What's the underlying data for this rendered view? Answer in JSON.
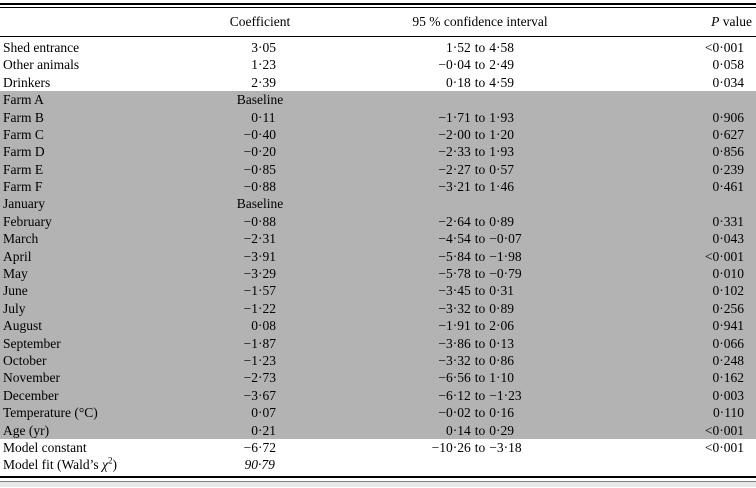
{
  "table": {
    "header": {
      "label": "",
      "coefficient": "Coefficient",
      "confidence_interval": "95 % confidence interval",
      "p_value_italic": "P",
      "p_value_rest": " value"
    },
    "rows": [
      {
        "label": "Shed entrance",
        "coef": "3·05",
        "ci": "1·52 to 4·58",
        "p": "<0·001",
        "shaded": false
      },
      {
        "label": "Other animals",
        "coef": "1·23",
        "ci": "−0·04 to 2·49",
        "p": "0·058",
        "shaded": false
      },
      {
        "label": "Drinkers",
        "coef": "2·39",
        "ci": "0·18 to 4·59",
        "p": "0·034",
        "shaded": false
      },
      {
        "label": "Farm A",
        "coef": "Baseline",
        "ci": "",
        "p": "",
        "shaded": true
      },
      {
        "label": "Farm B",
        "coef": "0·11",
        "ci": "−1·71 to 1·93",
        "p": "0·906",
        "shaded": true
      },
      {
        "label": "Farm C",
        "coef": "−0·40",
        "ci": "−2·00 to 1·20",
        "p": "0·627",
        "shaded": true
      },
      {
        "label": "Farm D",
        "coef": "−0·20",
        "ci": "−2·33 to 1·93",
        "p": "0·856",
        "shaded": true
      },
      {
        "label": "Farm E",
        "coef": "−0·85",
        "ci": "−2·27 to 0·57",
        "p": "0·239",
        "shaded": true
      },
      {
        "label": "Farm F",
        "coef": "−0·88",
        "ci": "−3·21 to 1·46",
        "p": "0·461",
        "shaded": true
      },
      {
        "label": "January",
        "coef": "Baseline",
        "ci": "",
        "p": "",
        "shaded": true
      },
      {
        "label": "February",
        "coef": "−0·88",
        "ci": "−2·64 to 0·89",
        "p": "0·331",
        "shaded": true
      },
      {
        "label": "March",
        "coef": "−2·31",
        "ci": "−4·54 to −0·07",
        "p": "0·043",
        "shaded": true
      },
      {
        "label": "April",
        "coef": "−3·91",
        "ci": "−5·84 to −1·98",
        "p": "<0·001",
        "shaded": true
      },
      {
        "label": "May",
        "coef": "−3·29",
        "ci": "−5·78 to −0·79",
        "p": "0·010",
        "shaded": true
      },
      {
        "label": "June",
        "coef": "−1·57",
        "ci": "−3·45 to 0·31",
        "p": "0·102",
        "shaded": true
      },
      {
        "label": "July",
        "coef": "−1·22",
        "ci": "−3·32 to 0·89",
        "p": "0·256",
        "shaded": true
      },
      {
        "label": "August",
        "coef": "0·08",
        "ci": "−1·91 to 2·06",
        "p": "0·941",
        "shaded": true
      },
      {
        "label": "September",
        "coef": "−1·87",
        "ci": "−3·86 to 0·13",
        "p": "0·066",
        "shaded": true
      },
      {
        "label": "October",
        "coef": "−1·23",
        "ci": "−3·32 to 0·86",
        "p": "0·248",
        "shaded": true
      },
      {
        "label": "November",
        "coef": "−2·73",
        "ci": "−6·56 to 1·10",
        "p": "0·162",
        "shaded": true
      },
      {
        "label": "December",
        "coef": "−3·67",
        "ci": "−6·12 to −1·23",
        "p": "0·003",
        "shaded": true
      },
      {
        "label": "Temperature (°C)",
        "coef": "0·07",
        "ci": "−0·02 to 0·16",
        "p": "0·110",
        "shaded": true
      },
      {
        "label": "Age (yr)",
        "coef": "0·21",
        "ci": "0·14 to 0·29",
        "p": "<0·001",
        "shaded": true
      },
      {
        "label": "Model constant",
        "coef": "−6·72",
        "ci": "−10·26 to −3·18",
        "p": "<0·001",
        "shaded": false
      },
      {
        "label_parts": {
          "pre": "Model fit (Wald’s ",
          "chi": "χ",
          "sup": "2",
          "post": ")"
        },
        "label": "Model fit (Wald’s χ2)",
        "coef": "90·79",
        "coef_italic": true,
        "ci": "",
        "p": "",
        "shaded": false
      }
    ]
  },
  "colors": {
    "row_shading": "#b3b3b3",
    "rule": "#000000"
  }
}
